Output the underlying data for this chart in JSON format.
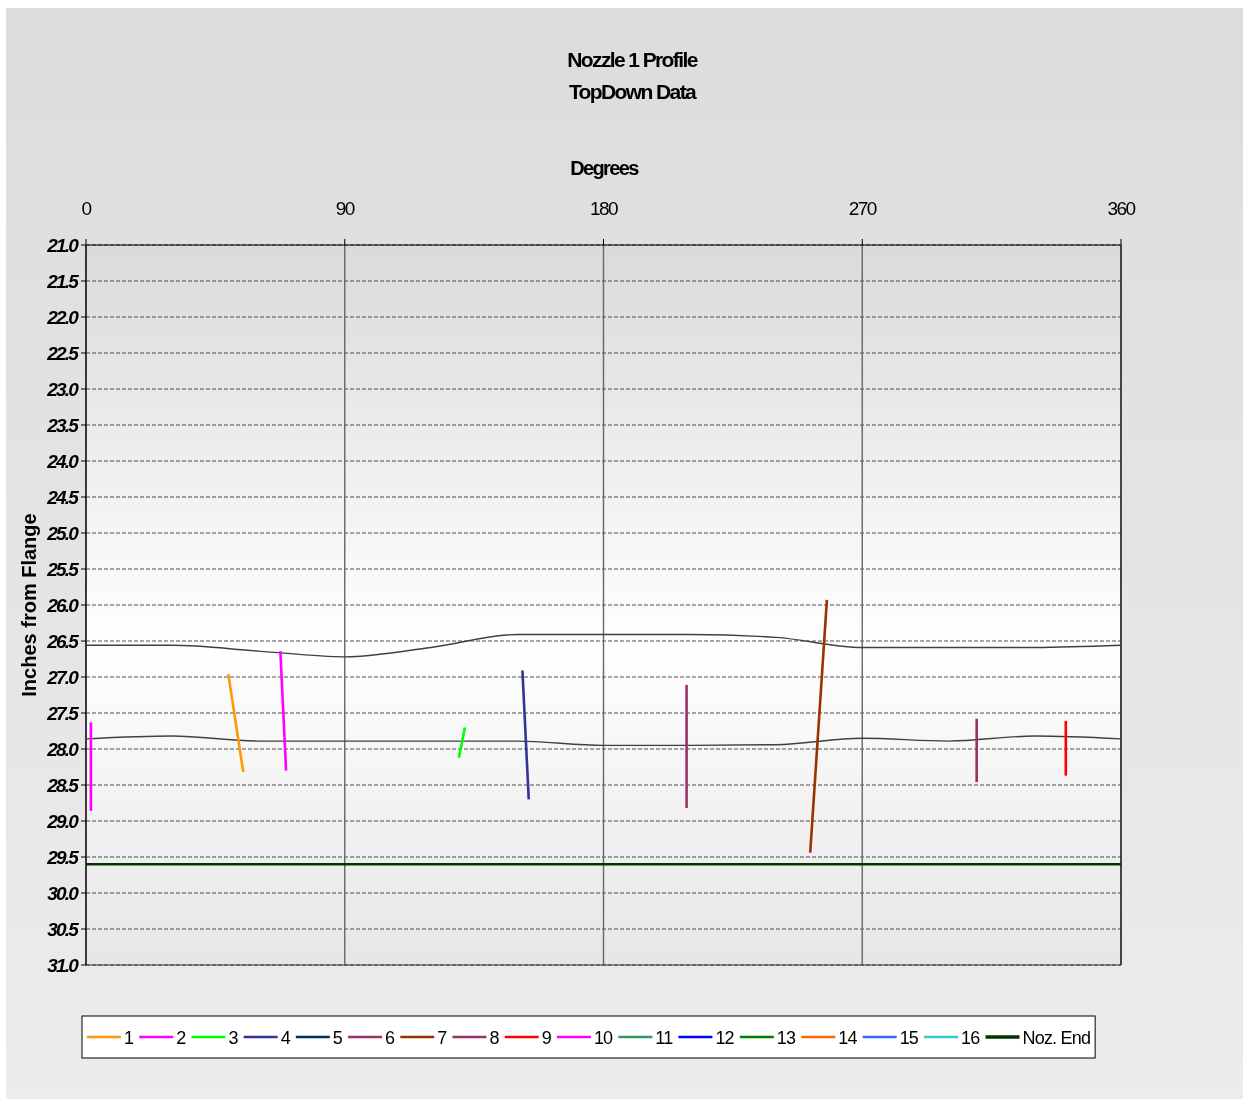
{
  "chart_data": {
    "type": "line",
    "title": "Nozzle 1 Profile",
    "subtitle": "TopDown Data",
    "xlabel": "Degrees",
    "ylabel": "Inches from Flange",
    "xlim": [
      0,
      360
    ],
    "xticks": [
      0,
      90,
      180,
      270,
      360
    ],
    "ylim": [
      31,
      21
    ],
    "yticks": [
      {
        "value": 21,
        "label": "21.0"
      },
      21.5,
      {
        "value": 22,
        "label": "22.0"
      },
      22.5,
      {
        "value": 23,
        "label": "23.0"
      },
      23.5,
      {
        "value": 24,
        "label": "24.0"
      },
      24.5,
      {
        "value": 25,
        "label": "25.0"
      },
      25.5,
      {
        "value": 26,
        "label": "26.0"
      },
      26.5,
      {
        "value": 27,
        "label": "27.0"
      },
      27.5,
      {
        "value": 28,
        "label": "28.0"
      },
      28.5,
      {
        "value": 29,
        "label": "29.0"
      },
      29.5,
      {
        "value": 30,
        "label": "30.0"
      },
      30.5,
      {
        "value": 31,
        "label": "31.0"
      }
    ],
    "grid": true,
    "legend": "bottom",
    "line_style": "solid",
    "series": [
      {
        "color": "#404040",
        "x": [
          0,
          30,
          60,
          90,
          120,
          150,
          180,
          210,
          240,
          270,
          300,
          330,
          360
        ],
        "values": [
          26.56,
          26.56,
          26.64,
          26.72,
          26.59,
          26.41,
          26.41,
          26.41,
          26.45,
          26.59,
          26.59,
          26.59,
          26.56
        ]
      },
      {
        "color": "#404040",
        "x": [
          0,
          30,
          60,
          90,
          120,
          150,
          180,
          210,
          240,
          270,
          300,
          330,
          360
        ],
        "values": [
          27.86,
          27.82,
          27.89,
          27.89,
          27.89,
          27.89,
          27.95,
          27.95,
          27.94,
          27.85,
          27.89,
          27.82,
          27.86
        ]
      },
      {
        "name": "1",
        "color": "#ff9900",
        "x": [
          49.5,
          54.7
        ],
        "values": [
          26.96,
          28.32
        ]
      },
      {
        "name": "2",
        "color": "#ff00ff",
        "x": [
          67.6,
          69.6
        ],
        "values": [
          26.64,
          28.3
        ]
      },
      {
        "name": "3",
        "color": "#00ff00",
        "x": [
          131.8,
          129.7
        ],
        "values": [
          27.7,
          28.12
        ]
      },
      {
        "name": "4",
        "color": "#333399",
        "x": [
          151.8,
          154.0
        ],
        "values": [
          26.91,
          28.7
        ]
      },
      {
        "name": "5",
        "color": "#003366"
      },
      {
        "name": "6",
        "color": "#993366",
        "x": [
          208.9,
          208.9
        ],
        "values": [
          27.11,
          28.82
        ]
      },
      {
        "name": "7",
        "color": "#993300",
        "x": [
          257.7,
          251.9
        ],
        "values": [
          25.93,
          29.44
        ]
      },
      {
        "name": "8",
        "color": "#993366",
        "x": [
          309.8,
          309.8
        ],
        "values": [
          27.58,
          28.46
        ]
      },
      {
        "name": "9",
        "color": "#ff0000",
        "x": [
          340.8,
          340.8
        ],
        "values": [
          27.61,
          28.37
        ]
      },
      {
        "name": "10",
        "color": "#ff00ff",
        "x": [
          1.7,
          1.7
        ],
        "values": [
          27.63,
          28.86
        ]
      },
      {
        "name": "11",
        "color": "#339966"
      },
      {
        "name": "12",
        "color": "#0000ff"
      },
      {
        "name": "13",
        "color": "#008000"
      },
      {
        "name": "14",
        "color": "#ff6600"
      },
      {
        "name": "15",
        "color": "#3366ff"
      },
      {
        "name": "16",
        "color": "#33cccc"
      },
      {
        "name": "Noz. End",
        "color": "#003300",
        "x": [
          0,
          360
        ],
        "values": [
          29.6,
          29.6
        ]
      }
    ]
  }
}
